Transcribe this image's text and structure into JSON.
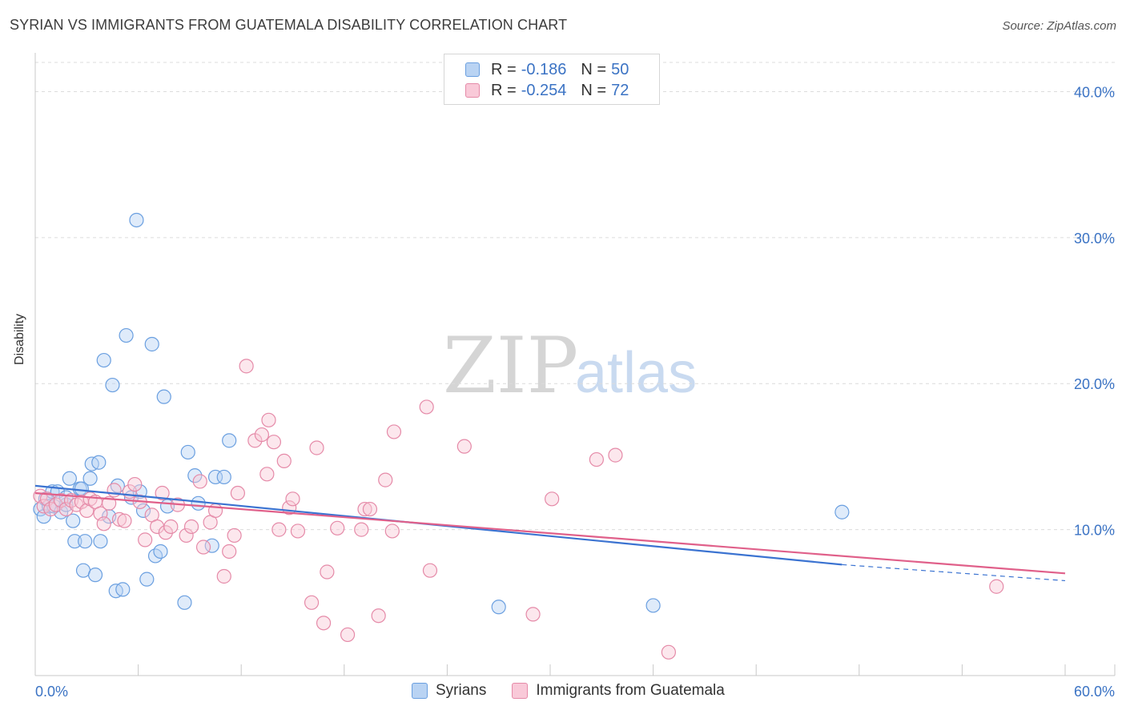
{
  "chart_data": {
    "type": "scatter",
    "title": "SYRIAN VS IMMIGRANTS FROM GUATEMALA DISABILITY CORRELATION CHART",
    "source": "Source: ZipAtlas.com",
    "ylabel": "Disability",
    "xlabel": "",
    "xlim": [
      0,
      60
    ],
    "ylim": [
      0,
      42
    ],
    "x_tick_labels": [
      "0.0%",
      "60.0%"
    ],
    "y_ticks": [
      10,
      20,
      30,
      40
    ],
    "y_tick_labels": [
      "10.0%",
      "20.0%",
      "30.0%",
      "40.0%"
    ],
    "grid": true,
    "watermark": {
      "zip": "ZIP",
      "atlas": "atlas"
    },
    "legend_stats": [
      {
        "r_label": "R =",
        "r_value": "-0.186",
        "n_label": "N =",
        "n_value": "50"
      },
      {
        "r_label": "R =",
        "r_value": "-0.254",
        "n_label": "N =",
        "n_value": "72"
      }
    ],
    "series": [
      {
        "name": "Syrians",
        "color": "#6a9fe0",
        "fill": "#b9d3f3",
        "line_color": "#3b73d1",
        "trend": {
          "x0": 0,
          "y0": 13.0,
          "x1": 47,
          "y1": 7.6,
          "dash_to_x": 60,
          "dash_to_y": 6.5
        },
        "points": [
          [
            0.3,
            11.4
          ],
          [
            0.5,
            10.9
          ],
          [
            0.6,
            12.1
          ],
          [
            0.8,
            11.6
          ],
          [
            1.0,
            12.6
          ],
          [
            1.1,
            11.6
          ],
          [
            1.3,
            12.6
          ],
          [
            1.5,
            11.2
          ],
          [
            1.8,
            11.7
          ],
          [
            1.8,
            12.2
          ],
          [
            2.0,
            13.5
          ],
          [
            2.2,
            10.6
          ],
          [
            2.3,
            9.2
          ],
          [
            2.6,
            12.8
          ],
          [
            2.8,
            7.2
          ],
          [
            2.9,
            9.2
          ],
          [
            3.2,
            13.5
          ],
          [
            3.3,
            14.5
          ],
          [
            3.5,
            6.9
          ],
          [
            3.7,
            14.6
          ],
          [
            3.8,
            9.2
          ],
          [
            4.0,
            21.6
          ],
          [
            4.3,
            10.9
          ],
          [
            4.5,
            19.9
          ],
          [
            4.7,
            5.8
          ],
          [
            4.8,
            13.0
          ],
          [
            5.1,
            5.9
          ],
          [
            5.3,
            23.3
          ],
          [
            5.6,
            12.2
          ],
          [
            5.9,
            31.2
          ],
          [
            6.1,
            12.6
          ],
          [
            6.3,
            11.3
          ],
          [
            6.5,
            6.6
          ],
          [
            6.8,
            22.7
          ],
          [
            7.0,
            8.2
          ],
          [
            7.3,
            8.5
          ],
          [
            7.5,
            19.1
          ],
          [
            7.7,
            11.6
          ],
          [
            8.7,
            5.0
          ],
          [
            8.9,
            15.3
          ],
          [
            9.3,
            13.7
          ],
          [
            9.5,
            11.8
          ],
          [
            10.3,
            8.9
          ],
          [
            10.5,
            13.6
          ],
          [
            11.0,
            13.6
          ],
          [
            11.3,
            16.1
          ],
          [
            27.0,
            4.7
          ],
          [
            36.0,
            4.8
          ],
          [
            47.0,
            11.2
          ],
          [
            2.7,
            12.8
          ]
        ]
      },
      {
        "name": "Immigrants from Guatemala",
        "color": "#e58aa8",
        "fill": "#f9c9d8",
        "line_color": "#e0608a",
        "trend": {
          "x0": 0,
          "y0": 12.5,
          "x1": 60,
          "y1": 7.0
        },
        "points": [
          [
            0.3,
            12.3
          ],
          [
            0.5,
            11.6
          ],
          [
            0.7,
            12.1
          ],
          [
            0.9,
            11.4
          ],
          [
            1.2,
            11.7
          ],
          [
            1.5,
            12.0
          ],
          [
            1.8,
            11.4
          ],
          [
            2.1,
            12.0
          ],
          [
            2.4,
            11.7
          ],
          [
            2.7,
            11.9
          ],
          [
            3.0,
            11.3
          ],
          [
            3.2,
            12.1
          ],
          [
            3.5,
            11.9
          ],
          [
            3.8,
            11.1
          ],
          [
            4.0,
            10.4
          ],
          [
            4.3,
            11.8
          ],
          [
            4.6,
            12.7
          ],
          [
            4.9,
            10.7
          ],
          [
            5.2,
            10.6
          ],
          [
            5.5,
            12.6
          ],
          [
            5.8,
            13.1
          ],
          [
            6.1,
            11.9
          ],
          [
            6.4,
            9.3
          ],
          [
            6.8,
            11.0
          ],
          [
            7.1,
            10.2
          ],
          [
            7.4,
            12.5
          ],
          [
            7.6,
            9.8
          ],
          [
            7.9,
            10.2
          ],
          [
            8.3,
            11.7
          ],
          [
            8.8,
            9.6
          ],
          [
            9.1,
            10.2
          ],
          [
            9.6,
            13.3
          ],
          [
            9.8,
            8.8
          ],
          [
            10.2,
            10.5
          ],
          [
            10.5,
            11.3
          ],
          [
            11.0,
            6.8
          ],
          [
            11.3,
            8.5
          ],
          [
            11.6,
            9.6
          ],
          [
            11.8,
            12.5
          ],
          [
            12.3,
            21.2
          ],
          [
            12.8,
            16.1
          ],
          [
            13.2,
            16.5
          ],
          [
            13.5,
            13.8
          ],
          [
            13.6,
            17.5
          ],
          [
            13.9,
            16.0
          ],
          [
            14.2,
            10.0
          ],
          [
            14.5,
            14.7
          ],
          [
            14.8,
            11.5
          ],
          [
            15.0,
            12.1
          ],
          [
            15.3,
            9.9
          ],
          [
            16.1,
            5.0
          ],
          [
            16.4,
            15.6
          ],
          [
            16.8,
            3.6
          ],
          [
            17.0,
            7.1
          ],
          [
            17.6,
            10.1
          ],
          [
            18.2,
            2.8
          ],
          [
            19.0,
            10.0
          ],
          [
            19.2,
            11.4
          ],
          [
            19.5,
            11.4
          ],
          [
            20.0,
            4.1
          ],
          [
            20.4,
            13.4
          ],
          [
            20.8,
            9.9
          ],
          [
            20.9,
            16.7
          ],
          [
            22.8,
            18.4
          ],
          [
            23.0,
            7.2
          ],
          [
            25.0,
            15.7
          ],
          [
            29.0,
            4.2
          ],
          [
            30.1,
            12.1
          ],
          [
            32.7,
            14.8
          ],
          [
            33.8,
            15.1
          ],
          [
            36.9,
            1.6
          ],
          [
            56.0,
            6.1
          ]
        ]
      }
    ]
  }
}
